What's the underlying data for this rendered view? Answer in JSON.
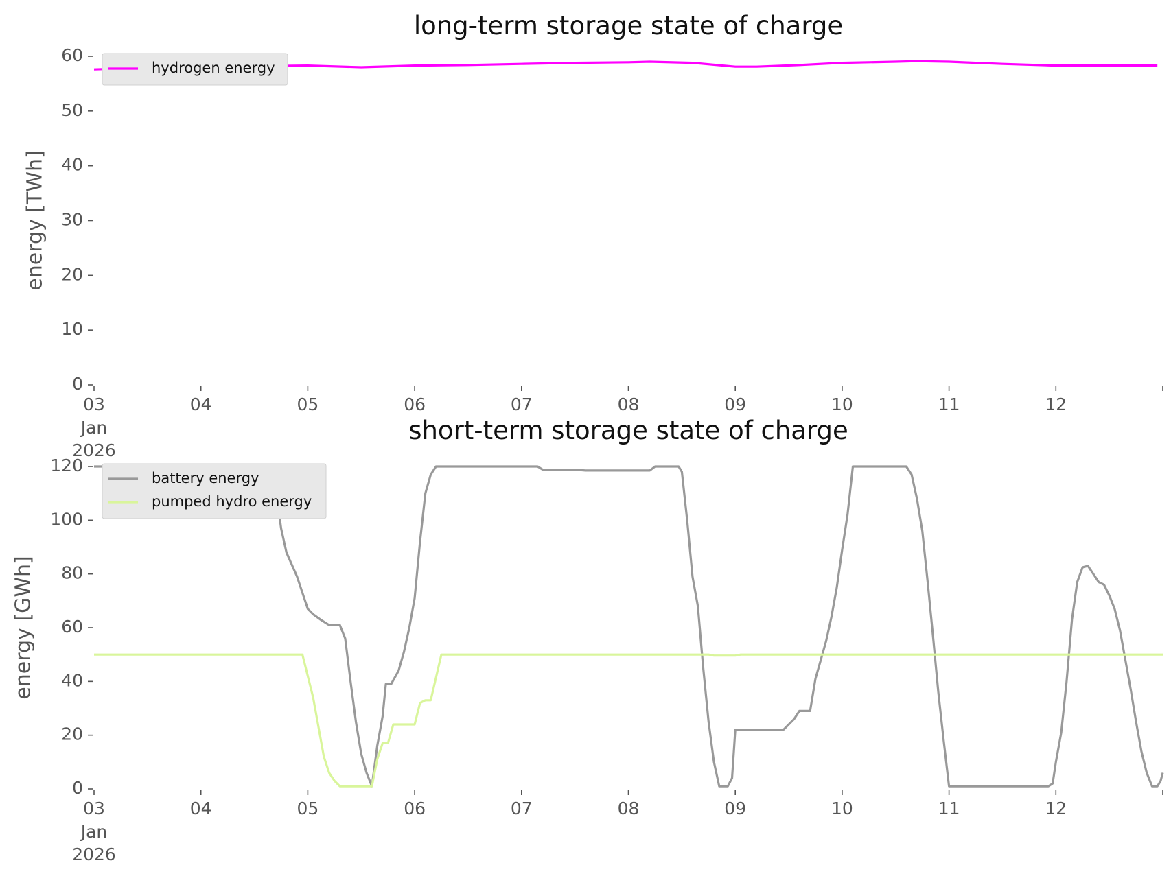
{
  "chart_data": [
    {
      "type": "line",
      "title": "long-term storage state of charge",
      "ylabel": "energy [TWh]",
      "xlabel": "",
      "ylim": [
        0,
        60
      ],
      "yticks": [
        "0",
        "10",
        "20",
        "30",
        "40",
        "50",
        "60"
      ],
      "xlim": [
        "2026-01-03",
        "2026-01-13"
      ],
      "xticks": [
        "03",
        "04",
        "05",
        "06",
        "07",
        "08",
        "09",
        "10",
        "11",
        "12"
      ],
      "xtick_first_extra": [
        "Jan",
        "2026"
      ],
      "grid": false,
      "legend": "top-left",
      "series": [
        {
          "name": "hydrogen energy",
          "color": "#ff00ff",
          "points": [
            [
              0.0,
              57.6
            ],
            [
              0.5,
              57.9
            ],
            [
              1.0,
              58.1
            ],
            [
              1.5,
              58.2
            ],
            [
              2.0,
              58.3
            ],
            [
              2.5,
              58.0
            ],
            [
              3.0,
              58.3
            ],
            [
              3.5,
              58.4
            ],
            [
              4.0,
              58.6
            ],
            [
              4.5,
              58.8
            ],
            [
              5.0,
              58.9
            ],
            [
              5.2,
              59.0
            ],
            [
              5.6,
              58.8
            ],
            [
              6.0,
              58.1
            ],
            [
              6.2,
              58.1
            ],
            [
              6.6,
              58.4
            ],
            [
              7.0,
              58.8
            ],
            [
              7.5,
              59.0
            ],
            [
              7.7,
              59.1
            ],
            [
              8.0,
              59.0
            ],
            [
              8.5,
              58.6
            ],
            [
              9.0,
              58.3
            ],
            [
              9.5,
              58.3
            ],
            [
              9.95,
              58.3
            ]
          ]
        }
      ]
    },
    {
      "type": "line",
      "title": "short-term storage state of charge",
      "ylabel": "energy [GWh]",
      "xlabel": "",
      "ylim": [
        0,
        120
      ],
      "yticks": [
        "0",
        "20",
        "40",
        "60",
        "80",
        "100",
        "120"
      ],
      "xlim": [
        "2026-01-03",
        "2026-01-13"
      ],
      "xticks": [
        "03",
        "04",
        "05",
        "06",
        "07",
        "08",
        "09",
        "10",
        "11",
        "12"
      ],
      "xtick_first_extra": [
        "Jan",
        "2026"
      ],
      "grid": false,
      "legend": "top-left",
      "series": [
        {
          "name": "battery energy",
          "color": "#999999",
          "points": [
            [
              0.0,
              120
            ],
            [
              1.0,
              120
            ],
            [
              1.5,
              120
            ],
            [
              1.65,
              120
            ],
            [
              1.7,
              112
            ],
            [
              1.75,
              97
            ],
            [
              1.8,
              88
            ],
            [
              1.9,
              79
            ],
            [
              2.0,
              67
            ],
            [
              2.05,
              65
            ],
            [
              2.12,
              63
            ],
            [
              2.2,
              61
            ],
            [
              2.3,
              61
            ],
            [
              2.35,
              56
            ],
            [
              2.4,
              40
            ],
            [
              2.45,
              25
            ],
            [
              2.5,
              13
            ],
            [
              2.55,
              6
            ],
            [
              2.6,
              1
            ],
            [
              2.65,
              16
            ],
            [
              2.7,
              27
            ],
            [
              2.73,
              39
            ],
            [
              2.78,
              39
            ],
            [
              2.85,
              44
            ],
            [
              2.9,
              51
            ],
            [
              2.95,
              60
            ],
            [
              3.0,
              71
            ],
            [
              3.05,
              92
            ],
            [
              3.1,
              110
            ],
            [
              3.15,
              117
            ],
            [
              3.2,
              120
            ],
            [
              4.0,
              120
            ],
            [
              4.15,
              120
            ],
            [
              4.2,
              118.8
            ],
            [
              4.5,
              118.8
            ],
            [
              4.6,
              118.5
            ],
            [
              5.0,
              118.5
            ],
            [
              5.2,
              118.5
            ],
            [
              5.25,
              120
            ],
            [
              5.47,
              120
            ],
            [
              5.5,
              118
            ],
            [
              5.55,
              100
            ],
            [
              5.6,
              79
            ],
            [
              5.65,
              68
            ],
            [
              5.7,
              45
            ],
            [
              5.75,
              25
            ],
            [
              5.8,
              10
            ],
            [
              5.85,
              1
            ],
            [
              5.93,
              1
            ],
            [
              5.97,
              4
            ],
            [
              6.0,
              22
            ],
            [
              6.45,
              22
            ],
            [
              6.5,
              24
            ],
            [
              6.55,
              26
            ],
            [
              6.6,
              29
            ],
            [
              6.7,
              29
            ],
            [
              6.75,
              41
            ],
            [
              6.8,
              48
            ],
            [
              6.85,
              55
            ],
            [
              6.9,
              64
            ],
            [
              6.95,
              75
            ],
            [
              7.0,
              89
            ],
            [
              7.05,
              102
            ],
            [
              7.1,
              120
            ],
            [
              7.6,
              120
            ],
            [
              7.65,
              117
            ],
            [
              7.7,
              108
            ],
            [
              7.75,
              96
            ],
            [
              7.8,
              77
            ],
            [
              7.85,
              57
            ],
            [
              7.9,
              36
            ],
            [
              7.95,
              18
            ],
            [
              8.0,
              1
            ],
            [
              8.05,
              1
            ],
            [
              8.93,
              1
            ],
            [
              8.97,
              2
            ],
            [
              9.0,
              10
            ],
            [
              9.05,
              21
            ],
            [
              9.1,
              40
            ],
            [
              9.15,
              63
            ],
            [
              9.2,
              77
            ],
            [
              9.25,
              82.5
            ],
            [
              9.3,
              83
            ],
            [
              9.4,
              77
            ],
            [
              9.45,
              76
            ],
            [
              9.5,
              72
            ],
            [
              9.55,
              67
            ],
            [
              9.6,
              59
            ],
            [
              9.65,
              48
            ],
            [
              9.7,
              37
            ],
            [
              9.75,
              25
            ],
            [
              9.8,
              14
            ],
            [
              9.85,
              6
            ],
            [
              9.9,
              1
            ],
            [
              9.95,
              1
            ],
            [
              9.98,
              3
            ],
            [
              10.0,
              6
            ]
          ]
        },
        {
          "name": "pumped hydro energy",
          "color": "#d9f59b",
          "points": [
            [
              0.0,
              50
            ],
            [
              1.0,
              50
            ],
            [
              1.95,
              50
            ],
            [
              2.0,
              42
            ],
            [
              2.05,
              34
            ],
            [
              2.1,
              23
            ],
            [
              2.15,
              12
            ],
            [
              2.2,
              6
            ],
            [
              2.25,
              3
            ],
            [
              2.3,
              1
            ],
            [
              2.6,
              1
            ],
            [
              2.65,
              11
            ],
            [
              2.7,
              17
            ],
            [
              2.75,
              17
            ],
            [
              2.8,
              24
            ],
            [
              3.0,
              24
            ],
            [
              3.05,
              32
            ],
            [
              3.1,
              33
            ],
            [
              3.15,
              33
            ],
            [
              3.25,
              50
            ],
            [
              4.0,
              50
            ],
            [
              5.0,
              50
            ],
            [
              5.5,
              50
            ],
            [
              5.75,
              50
            ],
            [
              5.8,
              49.6
            ],
            [
              6.0,
              49.6
            ],
            [
              6.05,
              50
            ],
            [
              7.0,
              50
            ],
            [
              8.0,
              50
            ],
            [
              9.0,
              50
            ],
            [
              10.0,
              50
            ]
          ]
        }
      ]
    }
  ]
}
